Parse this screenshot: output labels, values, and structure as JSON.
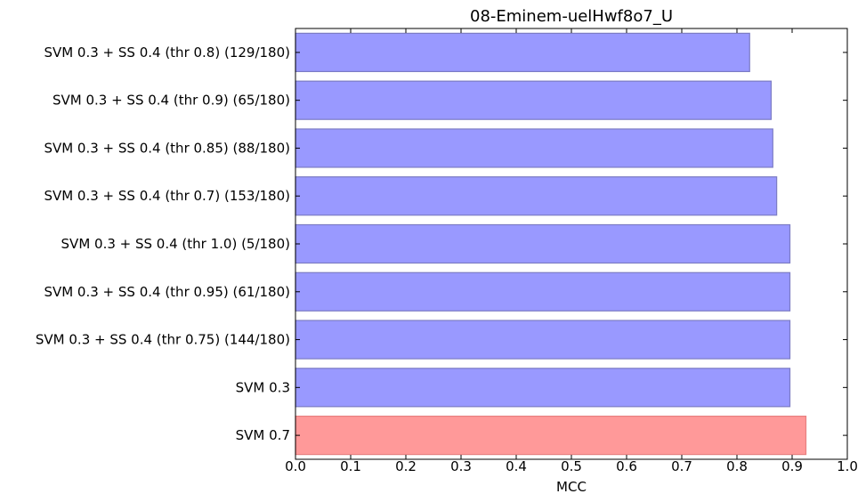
{
  "chart_data": {
    "type": "bar",
    "orientation": "horizontal",
    "title": "08-Eminem-uelHwf8o7_U",
    "xlabel": "MCC",
    "ylabel": "",
    "xlim": [
      0.0,
      1.0
    ],
    "xticks": [
      "0.0",
      "0.1",
      "0.2",
      "0.3",
      "0.4",
      "0.5",
      "0.6",
      "0.7",
      "0.8",
      "0.9",
      "1.0"
    ],
    "grid": false,
    "categories": [
      "SVM 0.3 + SS 0.4 (thr 0.8) (129/180)",
      "SVM 0.3 + SS 0.4 (thr 0.9) (65/180)",
      "SVM 0.3 + SS 0.4 (thr 0.85) (88/180)",
      "SVM 0.3 + SS 0.4 (thr 0.7) (153/180)",
      "SVM 0.3 + SS 0.4 (thr 1.0) (5/180)",
      "SVM 0.3 + SS 0.4 (thr 0.95) (61/180)",
      "SVM 0.3 + SS 0.4 (thr 0.75) (144/180)",
      "SVM 0.3",
      "SVM 0.7"
    ],
    "values": [
      0.823,
      0.862,
      0.865,
      0.872,
      0.896,
      0.896,
      0.896,
      0.896,
      0.925
    ],
    "bar_colors": [
      "#9999ff",
      "#9999ff",
      "#9999ff",
      "#9999ff",
      "#9999ff",
      "#9999ff",
      "#9999ff",
      "#9999ff",
      "#ff9999"
    ]
  }
}
